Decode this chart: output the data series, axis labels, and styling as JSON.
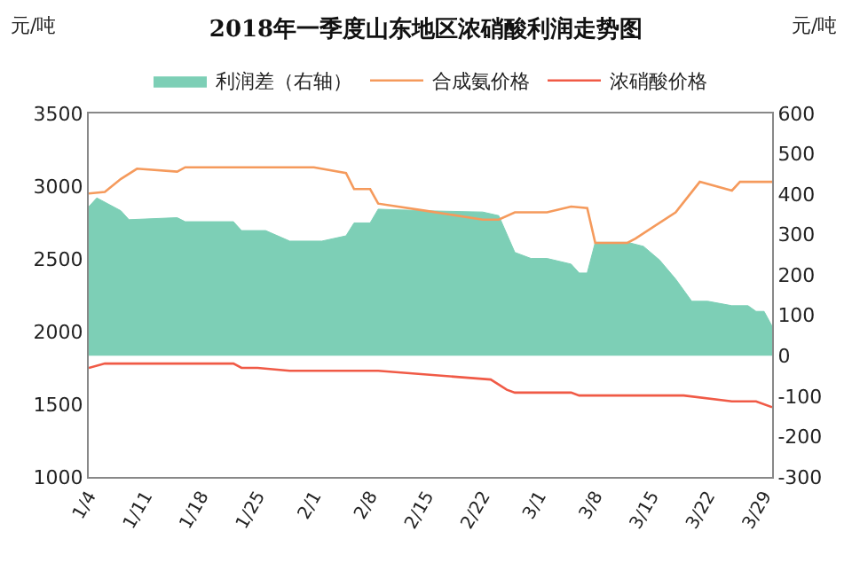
{
  "chart_data": {
    "type": "line",
    "title": "2018年一季度山东地区浓硝酸利润走势图",
    "ylabel": "元/吨",
    "y2label": "元/吨",
    "series": [
      {
        "name": "利润差（右轴）",
        "type": "area",
        "axis": "y2",
        "color": "#7dcfb6",
        "x": [
          "2018-01-04",
          "2018-01-05",
          "2018-01-08",
          "2018-01-09",
          "2018-01-15",
          "2018-01-16",
          "2018-01-22",
          "2018-01-23",
          "2018-01-26",
          "2018-01-29",
          "2018-02-02",
          "2018-02-05",
          "2018-02-06",
          "2018-02-08",
          "2018-02-09",
          "2018-02-15",
          "2018-02-22",
          "2018-02-24",
          "2018-02-26",
          "2018-02-28",
          "2018-03-02",
          "2018-03-05",
          "2018-03-06",
          "2018-03-07",
          "2018-03-08",
          "2018-03-12",
          "2018-03-14",
          "2018-03-16",
          "2018-03-18",
          "2018-03-20",
          "2018-03-22",
          "2018-03-25",
          "2018-03-27",
          "2018-03-28",
          "2018-03-29",
          "2018-03-30"
        ],
        "values": [
          369,
          391,
          359,
          337,
          342,
          332,
          332,
          310,
          310,
          284,
          284,
          297,
          329,
          329,
          363,
          359,
          356,
          347,
          256,
          241,
          241,
          227,
          205,
          205,
          281,
          281,
          271,
          237,
          190,
          135,
          135,
          124,
          124,
          110,
          110,
          73
        ]
      },
      {
        "name": "合成氨价格",
        "color": "#f59a5c",
        "x": [
          "2018-01-04",
          "2018-01-06",
          "2018-01-08",
          "2018-01-10",
          "2018-01-15",
          "2018-01-16",
          "2018-02-01",
          "2018-02-05",
          "2018-02-06",
          "2018-02-08",
          "2018-02-09",
          "2018-02-15",
          "2018-02-22",
          "2018-02-24",
          "2018-02-26",
          "2018-03-02",
          "2018-03-05",
          "2018-03-07",
          "2018-03-08",
          "2018-03-12",
          "2018-03-13",
          "2018-03-18",
          "2018-03-21",
          "2018-03-25",
          "2018-03-26",
          "2018-03-30"
        ],
        "values": [
          2950,
          2960,
          3050,
          3120,
          3100,
          3130,
          3130,
          3090,
          2980,
          2980,
          2880,
          2830,
          2770,
          2770,
          2820,
          2820,
          2860,
          2850,
          2610,
          2610,
          2640,
          2820,
          3030,
          2970,
          3030,
          3030
        ]
      },
      {
        "name": "浓硝酸价格",
        "color": "#f05a46",
        "x": [
          "2018-01-04",
          "2018-01-06",
          "2018-01-22",
          "2018-01-23",
          "2018-01-25",
          "2018-01-29",
          "2018-02-09",
          "2018-02-23",
          "2018-02-25",
          "2018-02-26",
          "2018-03-05",
          "2018-03-06",
          "2018-03-19",
          "2018-03-25",
          "2018-03-28",
          "2018-03-30"
        ],
        "values": [
          1750,
          1780,
          1780,
          1750,
          1750,
          1730,
          1730,
          1670,
          1600,
          1580,
          1580,
          1560,
          1560,
          1520,
          1520,
          1480
        ]
      }
    ],
    "xlim": [
      "2018-01-04",
      "2018-03-30"
    ],
    "xticks": [
      {
        "value": "2018-01-04",
        "label": "1/4"
      },
      {
        "value": "2018-01-11",
        "label": "1/11"
      },
      {
        "value": "2018-01-18",
        "label": "1/18"
      },
      {
        "value": "2018-01-25",
        "label": "1/25"
      },
      {
        "value": "2018-02-01",
        "label": "2/1"
      },
      {
        "value": "2018-02-08",
        "label": "2/8"
      },
      {
        "value": "2018-02-15",
        "label": "2/15"
      },
      {
        "value": "2018-02-22",
        "label": "2/22"
      },
      {
        "value": "2018-03-01",
        "label": "3/1"
      },
      {
        "value": "2018-03-08",
        "label": "3/8"
      },
      {
        "value": "2018-03-15",
        "label": "3/15"
      },
      {
        "value": "2018-03-22",
        "label": "3/22"
      },
      {
        "value": "2018-03-29",
        "label": "3/29"
      }
    ],
    "ylim": [
      1000,
      3500
    ],
    "yticks": [
      1000,
      1500,
      2000,
      2500,
      3000,
      3500
    ],
    "y2lim": [
      -300,
      600
    ],
    "y2ticks": [
      -300,
      -200,
      -100,
      0,
      100,
      200,
      300,
      400,
      500,
      600
    ],
    "grid": false,
    "legend": "top",
    "marker": "none",
    "line_style": "solid"
  }
}
